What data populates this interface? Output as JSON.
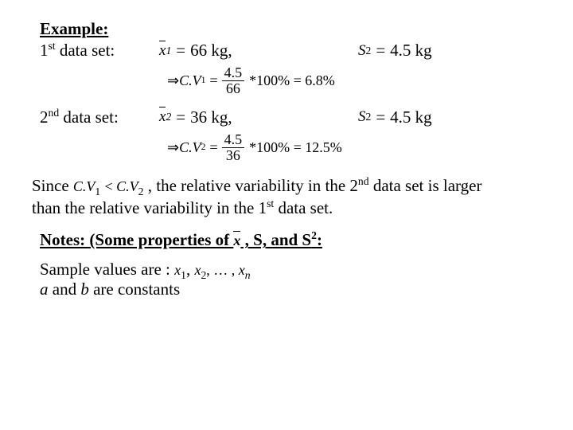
{
  "example": {
    "heading": "Example:",
    "set1": {
      "label_pre": "1",
      "label_ord": "st",
      "label_post": " data set:",
      "mean_symbol": "x",
      "mean_sub": "1",
      "mean_value": "66 kg,",
      "sd_symbol": "S",
      "sd_sub": "2",
      "sd_value": "4.5 kg",
      "cv_prefix": "⇒ ",
      "cv_symbol": "C.V",
      "cv_sub": "1",
      "cv_frac_num": "4.5",
      "cv_frac_den": "66",
      "cv_mult": "*100% = 6.8%"
    },
    "set2": {
      "label_pre": "2",
      "label_ord": "nd",
      "label_post": " data set:",
      "mean_symbol": "x",
      "mean_sub": "2",
      "mean_value": "36 kg,",
      "sd_symbol": "S",
      "sd_sub": "2",
      "sd_value": "4.5 kg",
      "cv_prefix": "⇒ ",
      "cv_symbol": "C.V",
      "cv_sub": "2",
      "cv_frac_num": "4.5",
      "cv_frac_den": "36",
      "cv_mult": "*100% = 12.5%"
    }
  },
  "since": {
    "pre": "Since ",
    "cv1": "C.V",
    "cv1_sub": "1",
    "lt": " < ",
    "cv2": "C.V",
    "cv2_sub": "2",
    "mid": " , the relative variability in the 2",
    "mid_ord": "nd",
    "mid2": " data set is larger ",
    "line2a": "than the relative variability in the 1",
    "line2_ord": "st",
    "line2b": " data set."
  },
  "notes": {
    "pre": "Notes: (Some properties of ",
    "xbar": "x",
    "mid": " , S, and S",
    "sup": "2",
    "post": ":"
  },
  "sample": {
    "line1_pre": "Sample values are : ",
    "x1": "x",
    "x1_sub": "1",
    "comma1": ", ",
    "x2": "x",
    "x2_sub": "2",
    "dots": ", … , ",
    "xn": "x",
    "xn_sub": "n",
    "line2_a": "a",
    "line2_mid": " and ",
    "line2_b": "b",
    "line2_post": " are constants"
  }
}
